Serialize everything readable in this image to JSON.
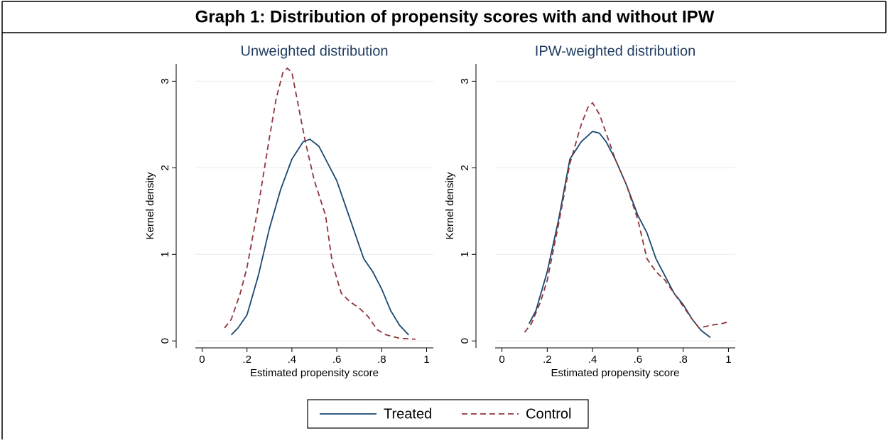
{
  "header": {
    "title": "Graph 1: Distribution of propensity scores with and without IPW"
  },
  "chart_data": [
    {
      "type": "line",
      "title": "Unweighted distribution",
      "x_label": "Estimated propensity score",
      "y_label": "Kernel density",
      "xlim": [
        -0.03,
        1.03
      ],
      "ylim": [
        -0.08,
        3.2
      ],
      "xticks": [
        0,
        {
          "value": 0.2,
          "label": ".2"
        },
        {
          "value": 0.4,
          "label": ".4"
        },
        {
          "value": 0.6,
          "label": ".6"
        },
        {
          "value": 0.8,
          "label": ".8"
        },
        1
      ],
      "yticks": [
        0,
        1,
        2,
        3
      ],
      "grid": true,
      "series": [
        {
          "name": "Treated",
          "color": "#1a476f",
          "dash": false,
          "x": [
            0.13,
            0.16,
            0.2,
            0.25,
            0.3,
            0.35,
            0.4,
            0.45,
            0.48,
            0.52,
            0.56,
            0.6,
            0.64,
            0.68,
            0.72,
            0.76,
            0.8,
            0.84,
            0.88,
            0.92
          ],
          "values": [
            0.07,
            0.15,
            0.3,
            0.75,
            1.3,
            1.75,
            2.1,
            2.3,
            2.33,
            2.25,
            2.05,
            1.85,
            1.55,
            1.25,
            0.95,
            0.8,
            0.6,
            0.35,
            0.18,
            0.07
          ]
        },
        {
          "name": "Control",
          "color": "#90353b",
          "dash": true,
          "x": [
            0.1,
            0.13,
            0.17,
            0.2,
            0.25,
            0.3,
            0.33,
            0.36,
            0.38,
            0.4,
            0.43,
            0.46,
            0.5,
            0.55,
            0.58,
            0.62,
            0.66,
            0.7,
            0.74,
            0.78,
            0.82,
            0.88,
            0.95
          ],
          "values": [
            0.15,
            0.25,
            0.55,
            0.85,
            1.55,
            2.35,
            2.8,
            3.1,
            3.15,
            3.1,
            2.7,
            2.3,
            1.85,
            1.45,
            0.9,
            0.55,
            0.45,
            0.38,
            0.28,
            0.13,
            0.07,
            0.03,
            0.02
          ]
        }
      ]
    },
    {
      "type": "line",
      "title": "IPW-weighted distribution",
      "x_label": "Estimated propensity score",
      "y_label": "Kernel density",
      "xlim": [
        -0.03,
        1.03
      ],
      "ylim": [
        -0.08,
        3.2
      ],
      "xticks": [
        0,
        {
          "value": 0.2,
          "label": ".2"
        },
        {
          "value": 0.4,
          "label": ".4"
        },
        {
          "value": 0.6,
          "label": ".6"
        },
        {
          "value": 0.8,
          "label": ".8"
        },
        1
      ],
      "yticks": [
        0,
        1,
        2,
        3
      ],
      "grid": true,
      "series": [
        {
          "name": "Treated",
          "color": "#1a476f",
          "dash": false,
          "x": [
            0.12,
            0.15,
            0.2,
            0.25,
            0.3,
            0.35,
            0.4,
            0.43,
            0.46,
            0.5,
            0.55,
            0.6,
            0.64,
            0.68,
            0.72,
            0.76,
            0.8,
            0.84,
            0.88,
            0.92
          ],
          "values": [
            0.2,
            0.35,
            0.8,
            1.4,
            2.1,
            2.3,
            2.42,
            2.4,
            2.3,
            2.1,
            1.8,
            1.45,
            1.25,
            0.95,
            0.75,
            0.55,
            0.42,
            0.25,
            0.12,
            0.04
          ]
        },
        {
          "name": "Control",
          "color": "#90353b",
          "dash": true,
          "x": [
            0.1,
            0.13,
            0.17,
            0.2,
            0.25,
            0.3,
            0.35,
            0.38,
            0.4,
            0.43,
            0.46,
            0.5,
            0.55,
            0.6,
            0.64,
            0.68,
            0.72,
            0.76,
            0.8,
            0.84,
            0.87,
            0.92,
            0.97,
            1.0
          ],
          "values": [
            0.1,
            0.2,
            0.45,
            0.7,
            1.35,
            2.05,
            2.5,
            2.7,
            2.75,
            2.62,
            2.4,
            2.1,
            1.8,
            1.4,
            0.95,
            0.8,
            0.7,
            0.55,
            0.4,
            0.25,
            0.15,
            0.18,
            0.2,
            0.22
          ]
        }
      ]
    }
  ]
}
